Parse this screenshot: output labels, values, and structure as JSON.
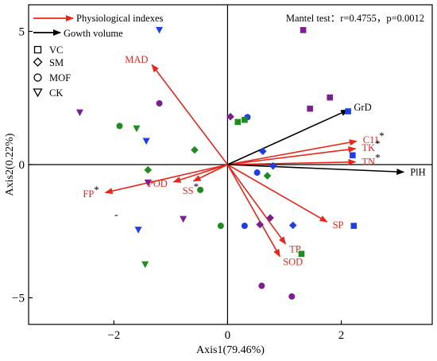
{
  "chart_data": {
    "type": "scatter",
    "title": "",
    "xlabel": "Axis1(79.46%)",
    "ylabel": "Axis2(0.22%)",
    "xlim": [
      -3.5,
      3.6
    ],
    "ylim": [
      -6.0,
      6.0
    ],
    "x_ticks": [
      -2,
      0,
      2
    ],
    "y_ticks": [
      -5,
      0,
      5
    ],
    "x_tick_labels": [
      "−2",
      "0",
      "2"
    ],
    "y_tick_labels": [
      "−5",
      "0",
      "5"
    ],
    "grid": false,
    "zero_lines": true,
    "legend_position": "top-left",
    "annotation": "Mantel test：r=0.4755，p=0.0012",
    "stray_text": "-",
    "arrow_legend": [
      {
        "name": "Physiological indexes",
        "color": "#e8261c"
      },
      {
        "name": "Gowth volume",
        "color": "#000000"
      }
    ],
    "marker_legend": [
      {
        "name": "VC",
        "symbol": "square"
      },
      {
        "name": "SM",
        "symbol": "diamond"
      },
      {
        "name": "MOF",
        "symbol": "circle"
      },
      {
        "name": "CK",
        "symbol": "triangle-down"
      }
    ],
    "arrows": [
      {
        "label": "MAD",
        "x": -1.33,
        "y": 3.75,
        "group": "physiological",
        "star": false
      },
      {
        "label": "C11",
        "x": 2.27,
        "y": 0.88,
        "group": "physiological",
        "star": true
      },
      {
        "label": "TK",
        "x": 2.25,
        "y": 0.6,
        "group": "physiological",
        "star": true
      },
      {
        "label": "TN",
        "x": 2.25,
        "y": 0.1,
        "group": "physiological",
        "star": true
      },
      {
        "label": "SP",
        "x": 1.75,
        "y": -2.15,
        "group": "physiological",
        "star": false
      },
      {
        "label": "TP",
        "x": 1.02,
        "y": -2.98,
        "group": "physiological",
        "star": false
      },
      {
        "label": "SOD",
        "x": 0.92,
        "y": -3.45,
        "group": "physiological",
        "star": false
      },
      {
        "label": "POD",
        "x": -0.95,
        "y": -0.65,
        "group": "physiological",
        "star": false
      },
      {
        "label": "SS",
        "x": -0.6,
        "y": -0.62,
        "group": "physiological",
        "star": true
      },
      {
        "label": "FP",
        "x": -2.15,
        "y": -1.05,
        "group": "physiological",
        "star": true
      },
      {
        "label": "GrD",
        "x": 2.12,
        "y": 2.05,
        "group": "growth",
        "star": false
      },
      {
        "label": "PlH",
        "x": 3.1,
        "y": -0.28,
        "group": "growth",
        "star": false
      }
    ],
    "points": [
      {
        "x": -1.2,
        "y": 5.05,
        "symbol": "triangle-down",
        "color": "#1f3fe6"
      },
      {
        "x": 1.33,
        "y": 5.05,
        "symbol": "square",
        "color": "#7b1f8e"
      },
      {
        "x": -1.2,
        "y": 2.3,
        "symbol": "circle",
        "color": "#7b1f8e"
      },
      {
        "x": -2.6,
        "y": 1.95,
        "symbol": "triangle-down",
        "color": "#7b1f8e"
      },
      {
        "x": 0.05,
        "y": 1.8,
        "symbol": "diamond",
        "color": "#7b1f8e"
      },
      {
        "x": 0.35,
        "y": 1.78,
        "symbol": "circle",
        "color": "#1f3fe6"
      },
      {
        "x": 0.3,
        "y": 1.68,
        "symbol": "square",
        "color": "#1e8c1e"
      },
      {
        "x": 0.18,
        "y": 1.6,
        "symbol": "square",
        "color": "#1e8c1e"
      },
      {
        "x": 1.45,
        "y": 2.1,
        "symbol": "square",
        "color": "#7b1f8e"
      },
      {
        "x": 1.8,
        "y": 2.52,
        "symbol": "square",
        "color": "#7b1f8e"
      },
      {
        "x": 2.12,
        "y": 2.0,
        "symbol": "square",
        "color": "#1f3fe6"
      },
      {
        "x": -1.9,
        "y": 1.45,
        "symbol": "circle",
        "color": "#1e8c1e"
      },
      {
        "x": -1.6,
        "y": 1.35,
        "symbol": "triangle-down",
        "color": "#1e8c1e"
      },
      {
        "x": -1.43,
        "y": 0.88,
        "symbol": "triangle-down",
        "color": "#1f3fe6"
      },
      {
        "x": -0.58,
        "y": 0.55,
        "symbol": "diamond",
        "color": "#1e8c1e"
      },
      {
        "x": 0.62,
        "y": 0.5,
        "symbol": "diamond",
        "color": "#1f3fe6"
      },
      {
        "x": 0.8,
        "y": -0.05,
        "symbol": "diamond",
        "color": "#1f3fe6"
      },
      {
        "x": 0.52,
        "y": -0.3,
        "symbol": "circle",
        "color": "#1f3fe6"
      },
      {
        "x": 0.7,
        "y": -0.42,
        "symbol": "diamond",
        "color": "#1e8c1e"
      },
      {
        "x": 2.2,
        "y": 0.35,
        "symbol": "square",
        "color": "#1f3fe6"
      },
      {
        "x": -1.4,
        "y": -0.2,
        "symbol": "diamond",
        "color": "#1e8c1e"
      },
      {
        "x": -1.4,
        "y": -0.68,
        "symbol": "triangle-down",
        "color": "#7b1f8e"
      },
      {
        "x": -0.48,
        "y": -0.95,
        "symbol": "circle",
        "color": "#1e8c1e"
      },
      {
        "x": -0.78,
        "y": -2.05,
        "symbol": "triangle-down",
        "color": "#7b1f8e"
      },
      {
        "x": 0.75,
        "y": -2.0,
        "symbol": "diamond",
        "color": "#7b1f8e"
      },
      {
        "x": 0.57,
        "y": -2.25,
        "symbol": "diamond",
        "color": "#7b1f8e"
      },
      {
        "x": 0.3,
        "y": -2.3,
        "symbol": "circle",
        "color": "#1f3fe6"
      },
      {
        "x": 1.15,
        "y": -2.28,
        "symbol": "diamond",
        "color": "#1f3fe6"
      },
      {
        "x": 2.22,
        "y": -2.3,
        "symbol": "square",
        "color": "#1f3fe6"
      },
      {
        "x": -0.12,
        "y": -2.3,
        "symbol": "circle",
        "color": "#1e8c1e"
      },
      {
        "x": -1.57,
        "y": -2.45,
        "symbol": "triangle-down",
        "color": "#1f3fe6"
      },
      {
        "x": 1.3,
        "y": -3.35,
        "symbol": "square",
        "color": "#1e8c1e"
      },
      {
        "x": -1.45,
        "y": -3.75,
        "symbol": "triangle-down",
        "color": "#1e8c1e"
      },
      {
        "x": 0.6,
        "y": -4.55,
        "symbol": "circle",
        "color": "#7b1f8e"
      },
      {
        "x": 1.13,
        "y": -4.95,
        "symbol": "circle",
        "color": "#7b1f8e"
      }
    ]
  }
}
